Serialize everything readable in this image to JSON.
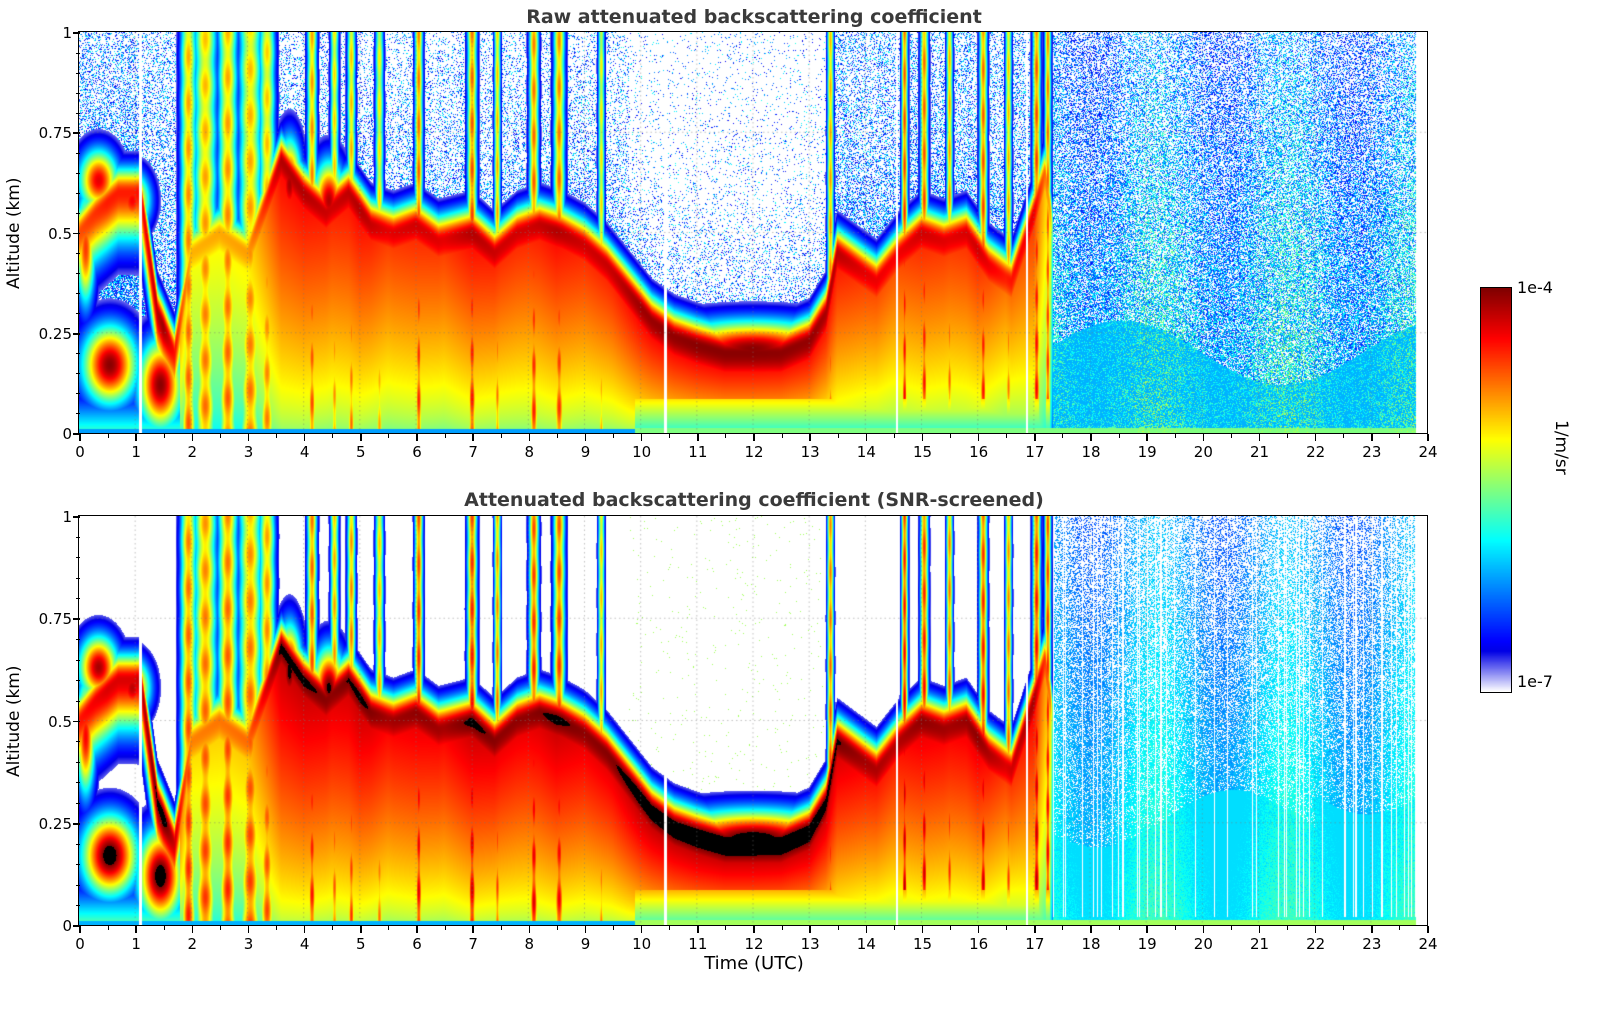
{
  "chart_data": {
    "type": "heatmap",
    "panels": [
      {
        "title": "Raw attenuated backscattering coefficient",
        "snr_screened": false
      },
      {
        "title": "Attenuated backscattering coefficient (SNR-screened)",
        "snr_screened": true
      }
    ],
    "x": {
      "label": "Time (UTC)",
      "range": [
        0,
        24
      ],
      "tick_labels": [
        "0",
        "1",
        "2",
        "3",
        "4",
        "5",
        "6",
        "7",
        "8",
        "9",
        "10",
        "11",
        "12",
        "13",
        "14",
        "15",
        "16",
        "17",
        "18",
        "19",
        "20",
        "21",
        "22",
        "23",
        "24"
      ]
    },
    "y": {
      "label": "Altitude (km)",
      "range": [
        0,
        1
      ],
      "tick_labels": [
        "0",
        "0.25",
        "0.5",
        "0.75",
        "1"
      ]
    },
    "colorbar": {
      "min": 1e-07,
      "max": 0.0001,
      "min_label": "1e-7",
      "max_label": "1e-4",
      "unit": "1/m/sr",
      "scale": "log",
      "colormap": "jet with low end fading to white; SNR-screened panel saturates above scale to black"
    },
    "features": {
      "noise_onset_utc": 17.35,
      "clear_midday": {
        "t_start": 9.8,
        "t_end": 13.3
      },
      "layer_height_track": [
        [
          0,
          0.5
        ],
        [
          0.3,
          0.55
        ],
        [
          0.7,
          0.6
        ],
        [
          1.1,
          0.6
        ],
        [
          1.4,
          0.3
        ],
        [
          1.7,
          0.2
        ],
        [
          2,
          0.45
        ],
        [
          2.5,
          0.5
        ],
        [
          3,
          0.45
        ],
        [
          3.6,
          0.68
        ],
        [
          4,
          0.6
        ],
        [
          4.4,
          0.55
        ],
        [
          4.8,
          0.6
        ],
        [
          5.2,
          0.52
        ],
        [
          5.6,
          0.5
        ],
        [
          6,
          0.52
        ],
        [
          6.4,
          0.48
        ],
        [
          7,
          0.5
        ],
        [
          7.4,
          0.45
        ],
        [
          7.8,
          0.5
        ],
        [
          8.2,
          0.52
        ],
        [
          8.6,
          0.5
        ],
        [
          9,
          0.47
        ],
        [
          9.4,
          0.42
        ],
        [
          9.8,
          0.35
        ],
        [
          10.2,
          0.28
        ],
        [
          10.6,
          0.24
        ],
        [
          11,
          0.22
        ],
        [
          11.5,
          0.2
        ],
        [
          12,
          0.2
        ],
        [
          12.5,
          0.2
        ],
        [
          13,
          0.23
        ],
        [
          13.3,
          0.3
        ],
        [
          13.5,
          0.45
        ],
        [
          13.8,
          0.42
        ],
        [
          14.2,
          0.38
        ],
        [
          14.6,
          0.45
        ],
        [
          15,
          0.5
        ],
        [
          15.4,
          0.48
        ],
        [
          15.8,
          0.5
        ],
        [
          16.2,
          0.42
        ],
        [
          16.6,
          0.38
        ],
        [
          17,
          0.55
        ],
        [
          17.2,
          0.65
        ],
        [
          17.35,
          0.5
        ]
      ],
      "layer_intensity_track": [
        [
          0,
          0.8
        ],
        [
          0.5,
          0.85
        ],
        [
          1,
          0.85
        ],
        [
          1.5,
          0.97
        ],
        [
          2,
          0.7
        ],
        [
          3,
          0.72
        ],
        [
          3.6,
          0.95
        ],
        [
          4,
          0.95
        ],
        [
          4.5,
          0.92
        ],
        [
          5,
          0.95
        ],
        [
          5.5,
          0.9
        ],
        [
          6,
          0.92
        ],
        [
          6.5,
          0.9
        ],
        [
          7,
          0.95
        ],
        [
          7.5,
          0.92
        ],
        [
          8,
          0.92
        ],
        [
          8.5,
          0.95
        ],
        [
          9,
          0.92
        ],
        [
          9.5,
          0.93
        ],
        [
          10,
          0.97
        ],
        [
          10.5,
          0.98
        ],
        [
          11,
          0.99
        ],
        [
          12,
          0.99
        ],
        [
          13,
          0.98
        ],
        [
          13.4,
          0.95
        ],
        [
          14,
          0.9
        ],
        [
          14.5,
          0.88
        ],
        [
          15,
          0.92
        ],
        [
          15.5,
          0.9
        ],
        [
          16,
          0.92
        ],
        [
          16.5,
          0.85
        ],
        [
          17,
          0.9
        ],
        [
          17.3,
          0.7
        ],
        [
          17.4,
          0
        ]
      ],
      "plumes": [
        [
          1.95,
          0.1,
          0.8
        ],
        [
          2.25,
          0.14,
          0.78
        ],
        [
          2.65,
          0.12,
          0.8
        ],
        [
          3.05,
          0.14,
          0.78
        ],
        [
          3.35,
          0.1,
          0.76
        ],
        [
          4.15,
          0.06,
          0.82
        ],
        [
          4.55,
          0.05,
          0.75
        ],
        [
          4.85,
          0.05,
          0.78
        ],
        [
          5.35,
          0.05,
          0.72
        ],
        [
          6.05,
          0.05,
          0.86
        ],
        [
          7,
          0.06,
          0.88
        ],
        [
          7.45,
          0.04,
          0.78
        ],
        [
          8.1,
          0.06,
          0.86
        ],
        [
          8.55,
          0.07,
          0.84
        ],
        [
          9.3,
          0.04,
          0.72
        ],
        [
          13.38,
          0.04,
          0.8
        ],
        [
          14.7,
          0.04,
          0.9
        ],
        [
          15.05,
          0.05,
          0.88
        ],
        [
          15.5,
          0.04,
          0.8
        ],
        [
          16.1,
          0.05,
          0.88
        ],
        [
          16.55,
          0.04,
          0.78
        ],
        [
          17.05,
          0.05,
          0.9
        ],
        [
          17.25,
          0.04,
          0.86
        ]
      ],
      "blobs": [
        [
          0.55,
          0.17,
          0.35,
          0.07,
          0.99
        ],
        [
          1.45,
          0.12,
          0.28,
          0.08,
          0.99
        ],
        [
          0.35,
          0.63,
          0.25,
          0.055,
          0.9
        ],
        [
          0.95,
          0.58,
          0.22,
          0.05,
          0.88
        ],
        [
          0.12,
          0.46,
          0.12,
          0.1,
          0.82
        ],
        [
          3.75,
          0.62,
          0.15,
          0.08,
          0.96
        ],
        [
          4.45,
          0.58,
          0.2,
          0.07,
          0.95
        ],
        [
          12,
          0.21,
          1.2,
          0.05,
          0.99
        ]
      ],
      "data_gaps": [
        [
          1.1,
          0.025
        ],
        [
          10.44,
          0.02
        ],
        [
          14.57,
          0.02
        ],
        [
          16.88,
          0.02
        ],
        [
          23.93,
          0.12
        ]
      ]
    }
  }
}
